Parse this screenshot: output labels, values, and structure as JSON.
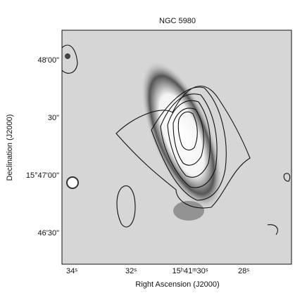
{
  "title": "NGC 5980",
  "x_axis": {
    "label": "Right Ascension (J2000)",
    "ticks": [
      "34ˢ",
      "32ˢ",
      "15ʰ41ᵐ30ˢ",
      "28ˢ"
    ]
  },
  "y_axis": {
    "label": "Declination (J2000)",
    "ticks": [
      "48'00\"",
      "30\"",
      "15°47'00\"",
      "46'30\""
    ]
  }
}
